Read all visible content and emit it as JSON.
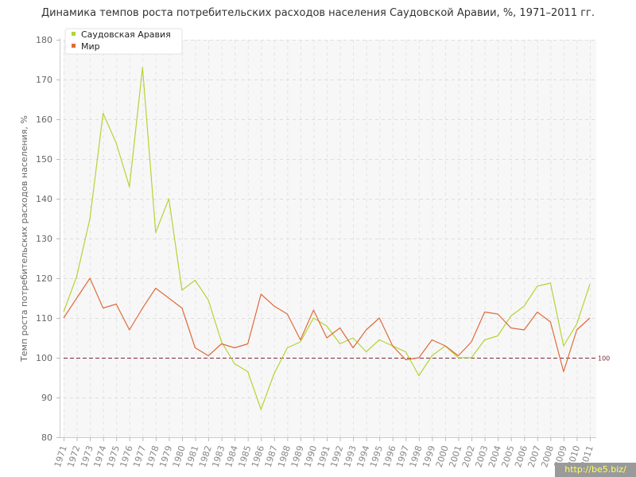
{
  "page": {
    "watermark": "http://be5.biz/"
  },
  "chart_data": {
    "type": "line",
    "title": "Динамика темпов роста потребительских расходов населения Саудовской Аравии, %, 1971–2011 гг.",
    "xlabel": "",
    "ylabel": "Темп роста потребительских расходов населения, %",
    "ylim": [
      80,
      180
    ],
    "yticks": [
      80,
      90,
      100,
      110,
      120,
      130,
      140,
      150,
      160,
      170,
      180
    ],
    "grid": true,
    "legend_position": "top-left",
    "reference_line": {
      "value": 100,
      "label": "100",
      "color": "#7a2a3a"
    },
    "x": [
      "1971",
      "1972",
      "1973",
      "1974",
      "1975",
      "1976",
      "1977",
      "1978",
      "1979",
      "1980",
      "1981",
      "1982",
      "1983",
      "1984",
      "1985",
      "1986",
      "1987",
      "1988",
      "1989",
      "1990",
      "1991",
      "1992",
      "1993",
      "1994",
      "1995",
      "1996",
      "1997",
      "1998",
      "1999",
      "2000",
      "2001",
      "2002",
      "2003",
      "2004",
      "2005",
      "2006",
      "2007",
      "2008",
      "2009",
      "2010",
      "2011"
    ],
    "series": [
      {
        "name": "Саудовская Аравия",
        "color": "#b5d334",
        "values": [
          111.5,
          120.5,
          135,
          161.5,
          154,
          143,
          173,
          131.5,
          140,
          117,
          119.5,
          114.5,
          104,
          98.5,
          96.5,
          87,
          96,
          102.5,
          104,
          110,
          108,
          103.5,
          105,
          101.5,
          104.5,
          103,
          101.5,
          95.5,
          100.5,
          103,
          100,
          100,
          104.5,
          105.5,
          110.5,
          113,
          118,
          118.8,
          103,
          108.5,
          118.5
        ]
      },
      {
        "name": "Мир",
        "color": "#e06a3b",
        "values": [
          110,
          115,
          120,
          112.5,
          113.5,
          107,
          112.5,
          117.5,
          115,
          112.5,
          102.5,
          100.5,
          103.5,
          102.5,
          103.5,
          116,
          113,
          111,
          104.5,
          112,
          105,
          107.5,
          102.5,
          107,
          110,
          103,
          99.5,
          100,
          104.5,
          103,
          100.5,
          104,
          111.5,
          111,
          107.5,
          107,
          111.5,
          109,
          96.5,
          107,
          110
        ]
      }
    ]
  }
}
